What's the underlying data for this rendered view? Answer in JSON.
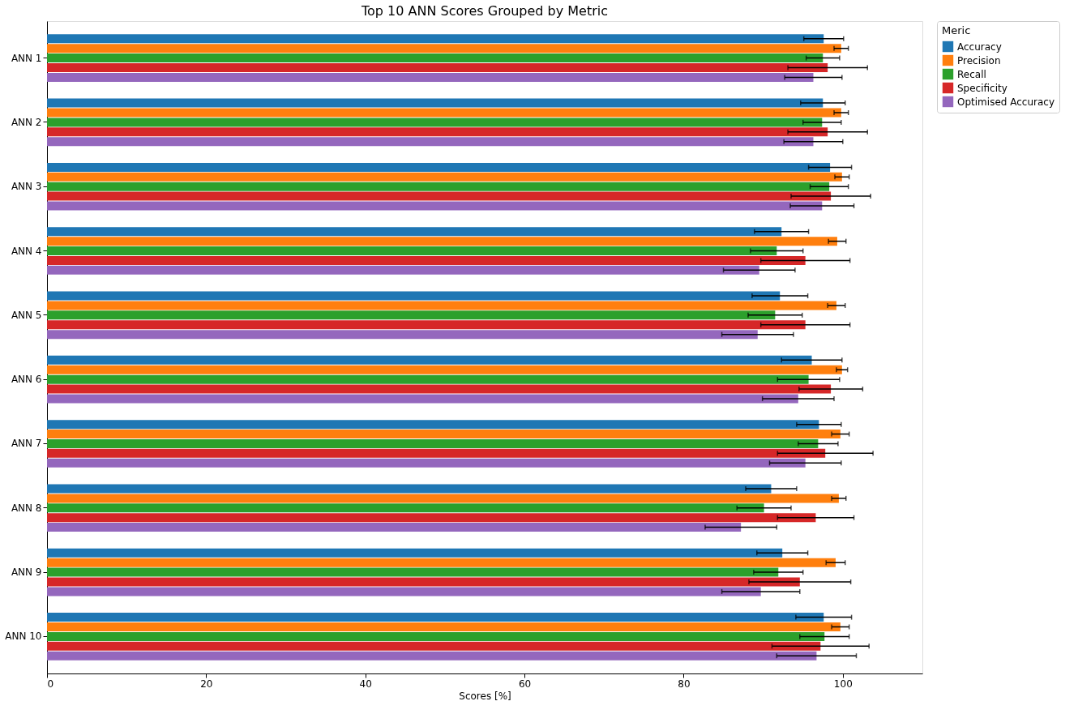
{
  "chart_data": {
    "type": "bar",
    "orientation": "horizontal",
    "title": "Top 10 ANN Scores Grouped by Metric",
    "xlabel": "Scores [%]",
    "legend_title": "Meric",
    "legend": "top right",
    "grid": false,
    "categories": [
      "ANN 1",
      "ANN 2",
      "ANN 3",
      "ANN 4",
      "ANN 5",
      "ANN 6",
      "ANN 7",
      "ANN 8",
      "ANN 9",
      "ANN 10"
    ],
    "xlim": [
      0,
      110
    ],
    "xticks": [
      0,
      20,
      40,
      60,
      80,
      100
    ],
    "series": [
      {
        "name": "Accuracy",
        "color": "#1f77b4",
        "values": [
          97.6,
          97.5,
          98.4,
          92.3,
          92.1,
          96.1,
          97.0,
          91.0,
          92.4,
          97.6
        ],
        "errors": [
          2.5,
          2.8,
          2.7,
          3.4,
          3.5,
          3.8,
          2.8,
          3.2,
          3.2,
          3.5
        ]
      },
      {
        "name": "Precision",
        "color": "#ff7f0e",
        "values": [
          99.8,
          99.8,
          99.9,
          99.3,
          99.2,
          99.9,
          99.7,
          99.5,
          99.1,
          99.7
        ],
        "errors": [
          0.9,
          0.9,
          0.9,
          1.1,
          1.1,
          0.7,
          1.1,
          0.9,
          1.2,
          1.1
        ]
      },
      {
        "name": "Recall",
        "color": "#2ca02c",
        "values": [
          97.5,
          97.4,
          98.3,
          91.7,
          91.5,
          95.7,
          96.9,
          90.1,
          91.9,
          97.7
        ],
        "errors": [
          2.1,
          2.4,
          2.4,
          3.3,
          3.4,
          3.9,
          2.5,
          3.4,
          3.1,
          3.1
        ]
      },
      {
        "name": "Specificity",
        "color": "#d62728",
        "values": [
          98.1,
          98.1,
          98.5,
          95.3,
          95.3,
          98.5,
          97.8,
          96.6,
          94.6,
          97.2
        ],
        "errors": [
          5.0,
          5.0,
          5.0,
          5.6,
          5.6,
          4.0,
          6.0,
          4.8,
          6.4,
          6.1
        ]
      },
      {
        "name": "Optimised Accuracy",
        "color": "#9467bd",
        "values": [
          96.3,
          96.3,
          97.4,
          89.5,
          89.3,
          94.4,
          95.3,
          87.2,
          89.7,
          96.7
        ],
        "errors": [
          3.6,
          3.7,
          4.0,
          4.5,
          4.5,
          4.5,
          4.5,
          4.5,
          4.9,
          5.0
        ]
      }
    ]
  }
}
